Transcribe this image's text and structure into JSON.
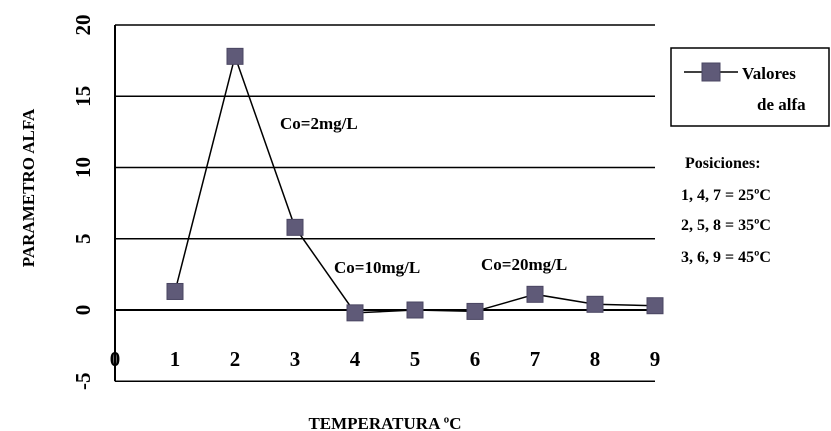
{
  "chart_data": {
    "type": "line",
    "title": "",
    "xlabel": "TEMPERATURA ºC",
    "ylabel": "PARAMETRO ALFA",
    "xlim": [
      0,
      9
    ],
    "ylim": [
      -5,
      20
    ],
    "x_ticks": [
      "0",
      "1",
      "2",
      "3",
      "4",
      "5",
      "6",
      "7",
      "8",
      "9"
    ],
    "y_ticks": [
      "-5",
      "0",
      "5",
      "10",
      "15",
      "20"
    ],
    "grid": "horizontal",
    "legend": "right",
    "series": [
      {
        "name": "Valores de alfa",
        "color": "#5f5a78",
        "x": [
          1,
          2,
          3,
          4,
          5,
          6,
          7,
          8,
          9
        ],
        "values": [
          1.3,
          17.8,
          5.8,
          -0.2,
          0.0,
          -0.1,
          1.1,
          0.4,
          0.3
        ]
      }
    ],
    "legend_lines": [
      "Valores",
      "de alfa"
    ],
    "annotations": [
      {
        "text": "Co=2mg/L",
        "x": 2.75,
        "y": 12.7
      },
      {
        "text": "Co=10mg/L",
        "x": 3.65,
        "y": 2.6
      },
      {
        "text": "Co=20mg/L",
        "x": 6.1,
        "y": 2.8
      }
    ],
    "notes": [
      "Posiciones:",
      "1, 4, 7 = 25ºC",
      "2, 5, 8 = 35ºC",
      "3, 6, 9 = 45ºC"
    ]
  }
}
